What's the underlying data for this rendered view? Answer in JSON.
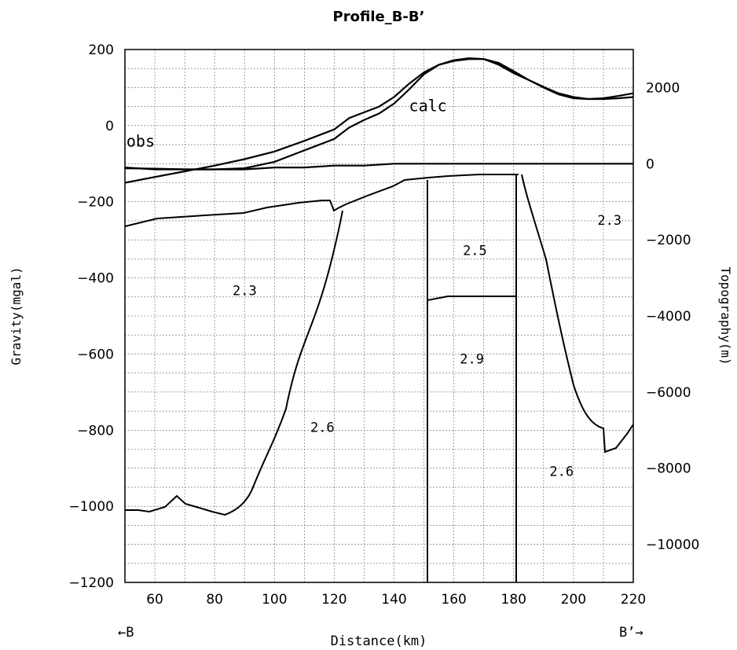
{
  "chart_data": {
    "type": "line",
    "title": "Profile_B-B’",
    "xlabel": "Distance(km)",
    "ylabel_left": "Gravity(mgal)",
    "ylabel_right": "Topography(m)",
    "end_label_left": "←B",
    "end_label_right": "B’→",
    "xlim": [
      50,
      220
    ],
    "ylim_left": [
      -1200,
      200
    ],
    "ylim_right": [
      -11000,
      3000
    ],
    "x_ticks": [
      60,
      80,
      100,
      120,
      140,
      160,
      180,
      200,
      220
    ],
    "y_ticks_left": [
      200,
      0,
      -200,
      -400,
      -600,
      -800,
      -1000,
      -1200
    ],
    "y_ticks_right": [
      2000,
      0,
      -2000,
      -4000,
      -6000,
      -8000,
      -10000
    ],
    "grid": true,
    "series": [
      {
        "name": "obs",
        "axis": "left",
        "x": [
          50,
          60,
          70,
          80,
          90,
          100,
          110,
          120,
          125,
          130,
          135,
          140,
          145,
          150,
          155,
          160,
          165,
          170,
          175,
          180,
          185,
          190,
          195,
          200,
          205,
          210,
          215,
          220
        ],
        "y": [
          -112,
          -113,
          -115,
          -115,
          -112,
          -95,
          -65,
          -35,
          -5,
          15,
          32,
          58,
          95,
          135,
          160,
          172,
          177,
          175,
          160,
          138,
          120,
          102,
          85,
          75,
          70,
          72,
          78,
          85
        ]
      },
      {
        "name": "calc",
        "axis": "left",
        "x": [
          50,
          60,
          70,
          80,
          90,
          100,
          110,
          120,
          125,
          130,
          135,
          140,
          145,
          150,
          155,
          160,
          165,
          170,
          175,
          180,
          185,
          190,
          195,
          200,
          205,
          210,
          215,
          220
        ],
        "y": [
          -150,
          -135,
          -120,
          -105,
          -88,
          -68,
          -40,
          -10,
          20,
          35,
          50,
          75,
          110,
          140,
          160,
          170,
          175,
          175,
          165,
          143,
          120,
          100,
          82,
          72,
          70,
          70,
          72,
          75
        ]
      },
      {
        "name": "",
        "axis": "right",
        "x": [
          50,
          60,
          70,
          80,
          90,
          100,
          110,
          120,
          130,
          140,
          145,
          150,
          160,
          170,
          180,
          190,
          200,
          210,
          220
        ],
        "y": [
          -100,
          -150,
          -150,
          -150,
          -150,
          -100,
          -100,
          -50,
          -50,
          0,
          0,
          0,
          0,
          0,
          0,
          0,
          0,
          0,
          0
        ]
      }
    ],
    "annotations": [
      {
        "text": "obs",
        "x": 50.5,
        "y": -55
      },
      {
        "text": "calc",
        "x": 145,
        "y": 38
      },
      {
        "text": "2.3",
        "x": 86,
        "y": -445
      },
      {
        "text": "2.5",
        "x": 163,
        "y": -340
      },
      {
        "text": "2.9",
        "x": 162,
        "y": -625
      },
      {
        "text": "2.6",
        "x": 112,
        "y": -805
      },
      {
        "text": "2.6",
        "x": 192,
        "y": -920
      },
      {
        "text": "2.3",
        "x": 208,
        "y": -260
      }
    ]
  }
}
